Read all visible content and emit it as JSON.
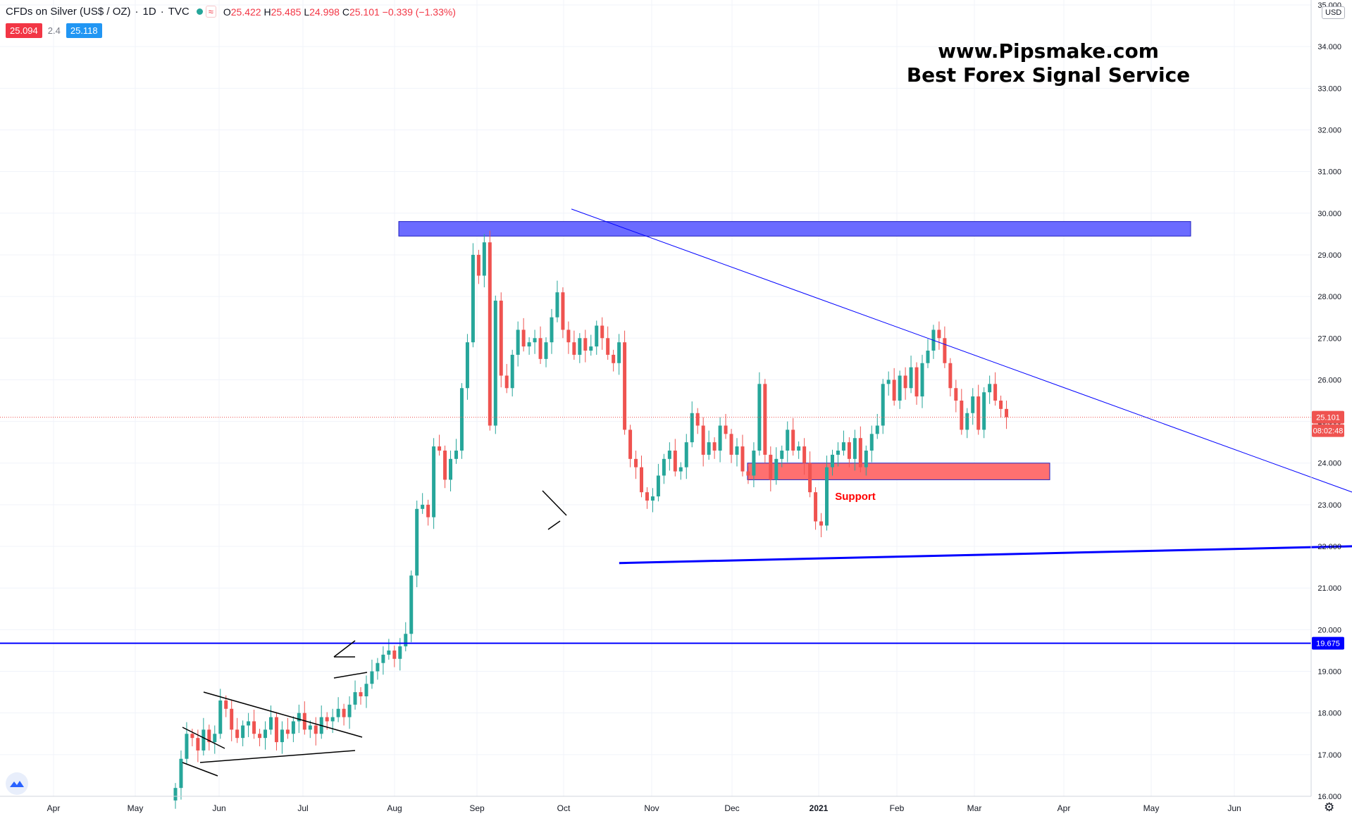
{
  "header": {
    "symbol": "CFDs on Silver (US$ / OZ)",
    "interval": "1D",
    "exchange": "TVC",
    "ohlc": {
      "o": "25.422",
      "h": "25.485",
      "l": "24.998",
      "c": "25.101",
      "chg": "−0.339 (−1.33%)"
    },
    "bid": "25.094",
    "spread": "2.4",
    "ask": "25.118"
  },
  "watermark": {
    "line1": "www.Pipsmake.com",
    "line2": "Best Forex Signal Service"
  },
  "currency": "USD",
  "colors": {
    "up": "#26a69a",
    "down": "#ef5350",
    "resistance": "#6b6bff",
    "support_zone": "#ff7070",
    "blue_line": "#0000ff",
    "red_arrow": "#ff0000"
  },
  "chart_data": {
    "type": "candlestick",
    "x_ticks": [
      "Apr",
      "May",
      "Jun",
      "Jul",
      "Aug",
      "Sep",
      "Oct",
      "Nov",
      "Dec",
      "2021",
      "Feb",
      "Mar",
      "Apr",
      "May",
      "Jun"
    ],
    "y_ticks": [
      "35.000",
      "34.000",
      "33.000",
      "32.000",
      "31.000",
      "30.000",
      "29.000",
      "28.000",
      "27.000",
      "26.000",
      "25.000",
      "24.000",
      "23.000",
      "22.000",
      "21.000",
      "20.000",
      "19.000",
      "18.000",
      "17.000",
      "16.000"
    ],
    "ylim": [
      16,
      35
    ],
    "last_price": {
      "value": 25.101,
      "label": "25.101",
      "countdown": "08:02:48"
    },
    "horizontal_line": {
      "value": 19.675,
      "label": "19.675"
    },
    "resistance_zone": {
      "from": "Aug",
      "to": "May",
      "y_low": 29.45,
      "y_high": 29.8
    },
    "support_zone": {
      "from": "Dec",
      "to": "Mar",
      "y_low": 23.6,
      "y_high": 24.0,
      "label": "Support"
    },
    "close": [
      16.2,
      16.9,
      17.5,
      17.4,
      17.1,
      17.6,
      17.3,
      17.5,
      18.3,
      18.1,
      17.6,
      17.4,
      17.7,
      17.8,
      17.5,
      17.4,
      17.6,
      17.9,
      17.3,
      17.6,
      17.5,
      17.8,
      18.0,
      17.6,
      17.7,
      17.5,
      17.9,
      17.8,
      17.9,
      18.1,
      17.9,
      18.2,
      18.5,
      18.4,
      18.7,
      19.0,
      19.2,
      19.4,
      19.5,
      19.3,
      19.6,
      19.9,
      21.3,
      22.9,
      23.0,
      22.7,
      24.4,
      24.3,
      23.6,
      24.1,
      24.3,
      25.8,
      26.9,
      29.0,
      28.5,
      29.3,
      24.9,
      27.9,
      26.1,
      25.8,
      26.6,
      27.2,
      26.8,
      26.9,
      27.0,
      26.5,
      26.9,
      27.5,
      28.1,
      27.2,
      26.9,
      26.6,
      27.0,
      26.7,
      26.8,
      27.3,
      27.0,
      26.6,
      26.4,
      26.9,
      24.8,
      24.1,
      23.9,
      23.3,
      23.1,
      23.2,
      23.7,
      24.1,
      24.3,
      23.8,
      23.9,
      24.5,
      25.2,
      24.9,
      24.2,
      24.5,
      24.3,
      24.9,
      24.7,
      24.2,
      24.4,
      23.8,
      23.7,
      24.3,
      25.9,
      24.2,
      23.6,
      24.1,
      24.3,
      24.8,
      24.3,
      24.4,
      24.0,
      23.3,
      22.6,
      22.5,
      23.9,
      24.2,
      24.3,
      24.5,
      24.1,
      24.6,
      23.9,
      24.3,
      24.7,
      24.9,
      25.9,
      26.0,
      25.5,
      26.1,
      25.8,
      26.3,
      25.6,
      26.4,
      26.7,
      27.2,
      27.0,
      26.4,
      25.8,
      25.5,
      24.8,
      25.2,
      25.6,
      24.8,
      25.7,
      25.9,
      25.5,
      25.3,
      25.1
    ],
    "start_index_offset": 1.45,
    "trendlines": [
      {
        "name": "descending",
        "p1": {
          "i": 63.5,
          "y": 30.1
        },
        "p2": {
          "i": 221,
          "y": 22.4
        }
      },
      {
        "name": "bottom",
        "p1": {
          "i": 72,
          "y": 21.6
        },
        "p2": {
          "i": 234,
          "y": 22.1
        }
      },
      {
        "name": "arrow-blue",
        "p1": {
          "i": 204,
          "y": 25.2
        },
        "p2": {
          "i": 222,
          "y": 29.5
        }
      },
      {
        "name": "arrow-red-down",
        "p1": {
          "i": 204,
          "y": 25.2
        },
        "p2": {
          "i": 211.5,
          "y": 24.1
        }
      },
      {
        "name": "arrow-red-up",
        "p1": {
          "i": 211.5,
          "y": 24.1
        },
        "p2": {
          "i": 232,
          "y": 29.5
        }
      }
    ]
  }
}
